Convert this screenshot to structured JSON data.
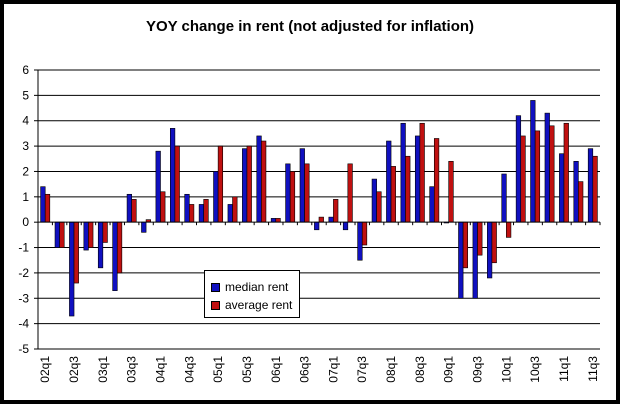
{
  "chart_data": {
    "type": "bar",
    "title": "YOY change in rent (not adjusted for inflation)",
    "xlabel": "",
    "ylabel": "",
    "ylim": [
      -5,
      6
    ],
    "yticks": [
      6,
      5,
      4,
      3,
      2,
      1,
      0,
      -1,
      -2,
      -3,
      -4,
      -5
    ],
    "grid": true,
    "legend_position": "lower-left",
    "categories": [
      "02q1",
      "02q2",
      "02q3",
      "02q4",
      "03q1",
      "03q2",
      "03q3",
      "03q4",
      "04q1",
      "04q2",
      "04q3",
      "04q4",
      "05q1",
      "05q2",
      "05q3",
      "05q4",
      "06q1",
      "06q2",
      "06q3",
      "06q4",
      "07q1",
      "07q2",
      "07q3",
      "07q4",
      "08q1",
      "08q2",
      "08q3",
      "08q4",
      "09q1",
      "09q2",
      "09q3",
      "09q4",
      "10q1",
      "10q2",
      "10q3",
      "10q4",
      "11q1",
      "11q2",
      "11q3"
    ],
    "x_tick_labels": [
      "02q1",
      "02q3",
      "03q1",
      "03q3",
      "04q1",
      "04q3",
      "05q1",
      "05q3",
      "06q1",
      "06q3",
      "07q1",
      "07q3",
      "08q1",
      "08q3",
      "09q1",
      "09q3",
      "10q1",
      "10q3",
      "11q1",
      "11q3"
    ],
    "series": [
      {
        "name": "median rent",
        "color": "#1010c0",
        "values": [
          1.4,
          -1.0,
          -3.7,
          -1.1,
          -1.8,
          -2.7,
          1.1,
          -0.4,
          2.8,
          3.7,
          1.1,
          0.7,
          2.0,
          0.7,
          2.9,
          3.4,
          0.15,
          2.3,
          2.9,
          -0.3,
          0.2,
          -0.3,
          -1.5,
          1.7,
          3.2,
          3.9,
          3.4,
          1.4,
          0.0,
          -3.0,
          -3.0,
          -2.2,
          1.9,
          4.2,
          4.8,
          4.3,
          2.7,
          2.4,
          2.9
        ]
      },
      {
        "name": "average rent",
        "color": "#c01010",
        "values": [
          1.1,
          -1.0,
          -2.4,
          -1.0,
          -0.8,
          -2.0,
          0.9,
          0.1,
          1.2,
          3.0,
          0.7,
          0.9,
          3.0,
          1.0,
          3.0,
          3.2,
          0.15,
          2.0,
          2.3,
          0.2,
          0.9,
          2.3,
          -0.9,
          1.2,
          2.2,
          2.6,
          3.9,
          3.3,
          2.4,
          -1.8,
          -1.3,
          -1.6,
          -0.6,
          3.4,
          3.6,
          3.8,
          3.9,
          1.6,
          2.6
        ]
      }
    ]
  }
}
